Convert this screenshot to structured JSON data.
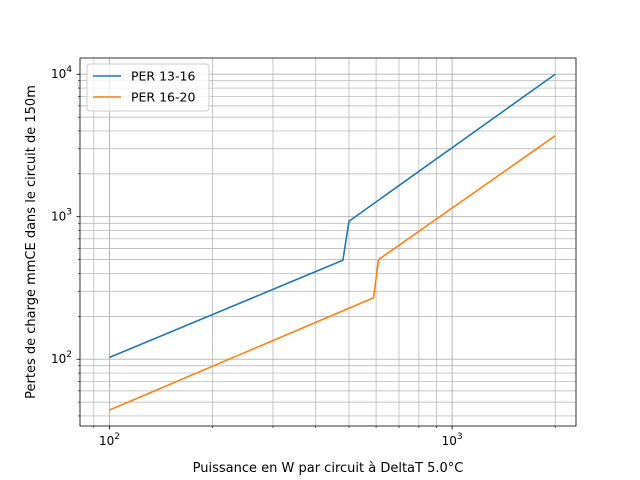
{
  "chart_data": {
    "type": "line",
    "title": "",
    "xlabel": "Puissance en W par circuit à DeltaT 5.0°C",
    "ylabel": "Pertes de charge mmCE dans le circuit de 150m",
    "xscale": "log",
    "yscale": "log",
    "xlim": [
      82,
      2300
    ],
    "ylim": [
      34,
      13000
    ],
    "grid": "both-major-and-minor",
    "legend_position": "top-left",
    "x_major_ticks": [
      {
        "value": 100,
        "base": "10",
        "exp": "2"
      },
      {
        "value": 1000,
        "base": "10",
        "exp": "3"
      }
    ],
    "y_major_ticks": [
      {
        "value": 100,
        "base": "10",
        "exp": "2"
      },
      {
        "value": 1000,
        "base": "10",
        "exp": "3"
      },
      {
        "value": 10000,
        "base": "10",
        "exp": "4"
      }
    ],
    "series": [
      {
        "name": "PER 13-16",
        "color": "#1f77b4",
        "points": [
          [
            100,
            103
          ],
          [
            480,
            495
          ],
          [
            500,
            930
          ],
          [
            2000,
            10000
          ]
        ]
      },
      {
        "name": "PER 16-20",
        "color": "#ff7f0e",
        "points": [
          [
            100,
            44
          ],
          [
            590,
            270
          ],
          [
            610,
            500
          ],
          [
            2000,
            3700
          ]
        ]
      }
    ]
  }
}
